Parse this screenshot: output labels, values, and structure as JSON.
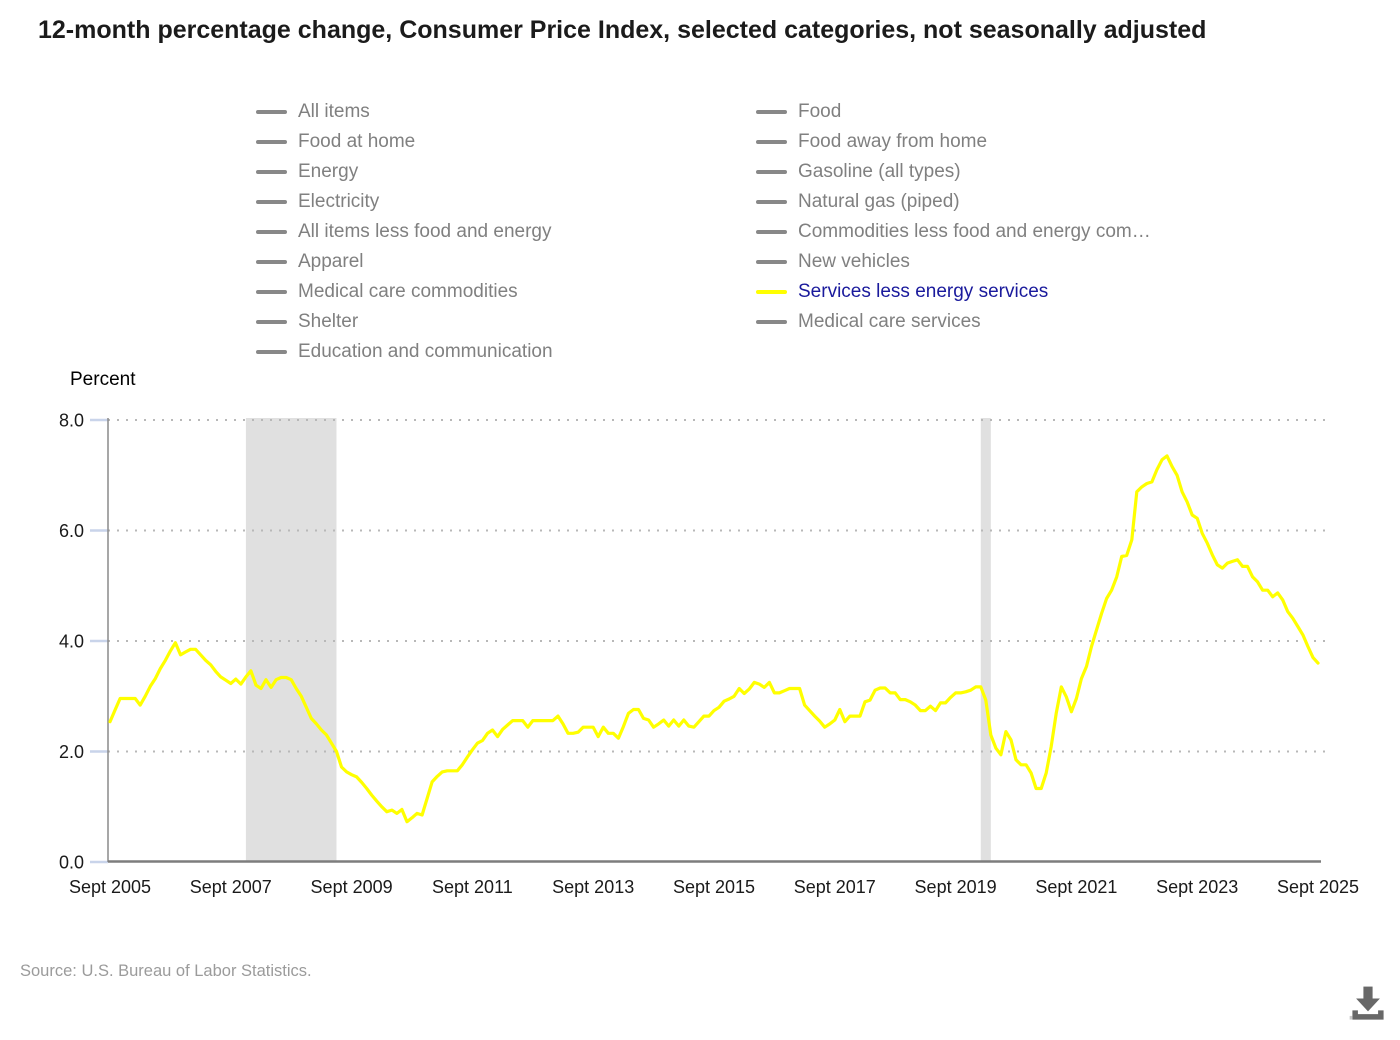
{
  "header": {
    "title": "12-month percentage change, Consumer Price Index, selected categories, not seasonally adjusted"
  },
  "legend": {
    "column_1": [
      {
        "label": "All items",
        "active": false
      },
      {
        "label": "Food at home",
        "active": false
      },
      {
        "label": "Energy",
        "active": false
      },
      {
        "label": "Electricity",
        "active": false
      },
      {
        "label": "All items less food and energy",
        "active": false
      },
      {
        "label": "Apparel",
        "active": false
      },
      {
        "label": "Medical care commodities",
        "active": false
      },
      {
        "label": "Shelter",
        "active": false
      },
      {
        "label": "Education and communication",
        "active": false
      }
    ],
    "column_2": [
      {
        "label": "Food",
        "active": false
      },
      {
        "label": "Food away from home",
        "active": false
      },
      {
        "label": "Gasoline (all types)",
        "active": false
      },
      {
        "label": "Natural gas (piped)",
        "active": false
      },
      {
        "label": "Commodities less food and energy com…",
        "active": false
      },
      {
        "label": "New vehicles",
        "active": false
      },
      {
        "label": "Services less energy services",
        "active": true
      },
      {
        "label": "Medical care services",
        "active": false
      }
    ]
  },
  "axis": {
    "y_title": "Percent",
    "y_tick_labels": [
      "0.0",
      "2.0",
      "4.0",
      "6.0",
      "8.0"
    ],
    "x_tick_labels": [
      "Sept 2005",
      "Sept 2007",
      "Sept 2009",
      "Sept 2011",
      "Sept 2013",
      "Sept 2015",
      "Sept 2017",
      "Sept 2019",
      "Sept 2021",
      "Sept 2023",
      "Sept 2025"
    ]
  },
  "footer": {
    "source": "Source: U.S. Bureau of Labor Statistics."
  },
  "colors": {
    "active_series": "#ffff00",
    "active_legend_text": "#1a1a9c",
    "inactive_legend": "#888888",
    "gridline": "#b8b8b8",
    "recession_band": "#e0e0e0",
    "y_axis_line": "#8a8a8a",
    "x_axis_line": "#7d7d7d",
    "y_tick": "#c9d4ea",
    "download_icon": "#686868"
  },
  "chart_data": {
    "type": "line",
    "title": "12-month percentage change, Consumer Price Index, selected categories, not seasonally adjusted",
    "xlabel": "",
    "ylabel": "Percent",
    "ylim": [
      0,
      8
    ],
    "yticks": [
      0,
      2,
      4,
      6,
      8
    ],
    "grid": "dotted horizontal",
    "legend_position": "top",
    "x_start": "Sept 2005",
    "x_end": "Sept 2025",
    "frequency": "monthly",
    "recession_bands_month_index": [
      {
        "from": 27,
        "to": 45
      },
      {
        "from": 173,
        "to": 175
      }
    ],
    "series": [
      {
        "name": "Services less energy services",
        "color": "#ffff00",
        "values": [
          2.54,
          2.75,
          2.96,
          2.96,
          2.96,
          2.96,
          2.84,
          3.0,
          3.18,
          3.32,
          3.5,
          3.65,
          3.82,
          3.97,
          3.75,
          3.8,
          3.85,
          3.85,
          3.75,
          3.65,
          3.57,
          3.45,
          3.35,
          3.29,
          3.23,
          3.31,
          3.22,
          3.35,
          3.46,
          3.2,
          3.14,
          3.3,
          3.16,
          3.3,
          3.34,
          3.34,
          3.3,
          3.14,
          3.0,
          2.8,
          2.6,
          2.5,
          2.39,
          2.3,
          2.15,
          2.0,
          1.72,
          1.63,
          1.58,
          1.54,
          1.44,
          1.33,
          1.21,
          1.1,
          1.0,
          0.91,
          0.94,
          0.88,
          0.95,
          0.73,
          0.8,
          0.88,
          0.85,
          1.15,
          1.45,
          1.55,
          1.63,
          1.65,
          1.65,
          1.65,
          1.76,
          1.9,
          2.03,
          2.15,
          2.2,
          2.33,
          2.39,
          2.27,
          2.4,
          2.48,
          2.56,
          2.56,
          2.56,
          2.44,
          2.56,
          2.56,
          2.56,
          2.56,
          2.56,
          2.64,
          2.5,
          2.33,
          2.33,
          2.35,
          2.44,
          2.44,
          2.44,
          2.27,
          2.44,
          2.33,
          2.33,
          2.24,
          2.45,
          2.69,
          2.76,
          2.76,
          2.6,
          2.57,
          2.44,
          2.5,
          2.57,
          2.46,
          2.57,
          2.46,
          2.57,
          2.46,
          2.44,
          2.54,
          2.64,
          2.64,
          2.74,
          2.8,
          2.91,
          2.95,
          3.0,
          3.14,
          3.05,
          3.13,
          3.25,
          3.22,
          3.16,
          3.25,
          3.06,
          3.06,
          3.1,
          3.14,
          3.14,
          3.14,
          2.84,
          2.74,
          2.64,
          2.55,
          2.44,
          2.5,
          2.57,
          2.76,
          2.54,
          2.64,
          2.64,
          2.64,
          2.9,
          2.93,
          3.11,
          3.15,
          3.15,
          3.06,
          3.06,
          2.94,
          2.94,
          2.9,
          2.84,
          2.74,
          2.74,
          2.82,
          2.74,
          2.88,
          2.88,
          2.98,
          3.06,
          3.06,
          3.08,
          3.11,
          3.17,
          3.17,
          2.93,
          2.3,
          2.06,
          1.94,
          2.36,
          2.21,
          1.85,
          1.76,
          1.76,
          1.61,
          1.33,
          1.33,
          1.61,
          2.09,
          2.7,
          3.17,
          2.99,
          2.72,
          2.96,
          3.32,
          3.54,
          3.9,
          4.2,
          4.5,
          4.77,
          4.92,
          5.16,
          5.53,
          5.55,
          5.83,
          6.7,
          6.79,
          6.85,
          6.88,
          7.1,
          7.28,
          7.35,
          7.16,
          7.0,
          6.7,
          6.52,
          6.28,
          6.22,
          5.95,
          5.77,
          5.56,
          5.38,
          5.32,
          5.41,
          5.44,
          5.47,
          5.35,
          5.35,
          5.16,
          5.07,
          4.92,
          4.92,
          4.8,
          4.87,
          4.74,
          4.53,
          4.41,
          4.26,
          4.11,
          3.9,
          3.7,
          3.6
        ]
      }
    ],
    "inactive_series_names": [
      "All items",
      "Food at home",
      "Energy",
      "Electricity",
      "All items less food and energy",
      "Apparel",
      "Medical care commodities",
      "Shelter",
      "Education and communication",
      "Food",
      "Food away from home",
      "Gasoline (all types)",
      "Natural gas (piped)",
      "Commodities less food and energy com…",
      "New vehicles",
      "Medical care services"
    ]
  }
}
